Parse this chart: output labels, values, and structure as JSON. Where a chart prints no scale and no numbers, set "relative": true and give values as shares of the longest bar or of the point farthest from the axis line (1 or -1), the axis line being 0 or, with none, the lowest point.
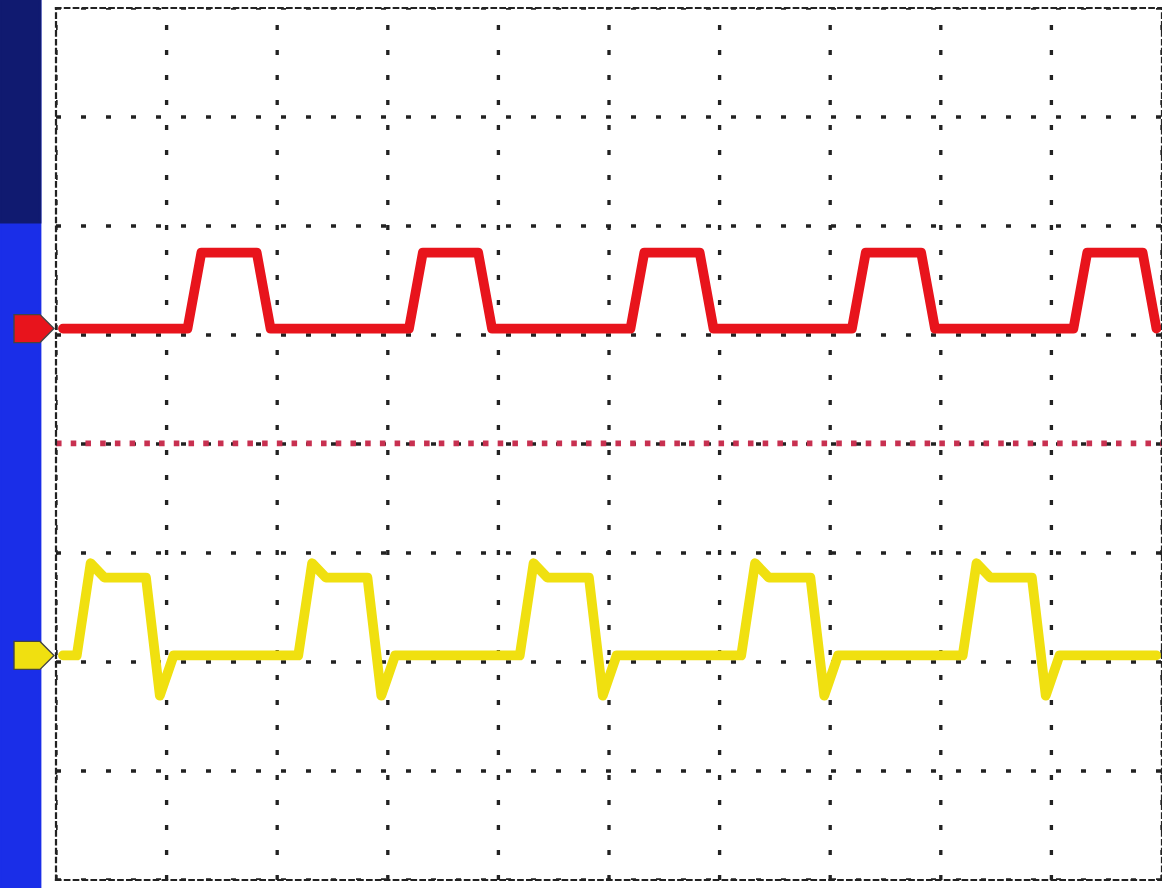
{
  "chart_data": {
    "type": "line",
    "relative": true,
    "grid": true,
    "marker": "none",
    "line_style": "solid",
    "categories": [
      null,
      null,
      null,
      null,
      null,
      null,
      null,
      null,
      null,
      null,
      null,
      null,
      null,
      null,
      null,
      null,
      null,
      null,
      null,
      null,
      null,
      null,
      null,
      null,
      null,
      null,
      null,
      null,
      null,
      null,
      null,
      null,
      null,
      null,
      null,
      null,
      null,
      null,
      null,
      null,
      null,
      null,
      null,
      null,
      null,
      null,
      null,
      null,
      null,
      null,
      null,
      null,
      null,
      null,
      null,
      null,
      null,
      null,
      null,
      null,
      null,
      null,
      null,
      null,
      null,
      null,
      null,
      null,
      null,
      null,
      null,
      null,
      null,
      null,
      null,
      null,
      null,
      null,
      null,
      null
    ],
    "series": [
      {
        "color": "#e8141c",
        "values": [
          0.879,
          0.879,
          0.879,
          0.879,
          0.879,
          0.879,
          0.879,
          0.879,
          0.879,
          0.879,
          1,
          1,
          1,
          1,
          1,
          0.879,
          0.879,
          0.879,
          0.879,
          0.879,
          0.879,
          0.879,
          0.879,
          0.879,
          0.879,
          0.879,
          1,
          1,
          1,
          1,
          1,
          0.879,
          0.879,
          0.879,
          0.879,
          0.879,
          0.879,
          0.879,
          0.879,
          0.879,
          0.879,
          0.879,
          1,
          1,
          1,
          1,
          1,
          0.879,
          0.879,
          0.879,
          0.879,
          0.879,
          0.879,
          0.879,
          0.879,
          0.879,
          0.879,
          0.879,
          1,
          1,
          1,
          1,
          1,
          0.879,
          0.879,
          0.879,
          0.879,
          0.879,
          0.879,
          0.879,
          0.879,
          0.879,
          0.879,
          0.879,
          1,
          1,
          1,
          1,
          1,
          0.879
        ]
      },
      {
        "color": "#f0e010",
        "values": [
          0.358,
          0.358,
          0.505,
          0.482,
          0.482,
          0.482,
          0.482,
          0.294,
          0.358,
          0.358,
          0.358,
          0.358,
          0.358,
          0.358,
          0.358,
          0.358,
          0.358,
          0.358,
          0.505,
          0.482,
          0.482,
          0.482,
          0.482,
          0.294,
          0.358,
          0.358,
          0.358,
          0.358,
          0.358,
          0.358,
          0.358,
          0.358,
          0.358,
          0.358,
          0.505,
          0.482,
          0.482,
          0.482,
          0.482,
          0.294,
          0.358,
          0.358,
          0.358,
          0.358,
          0.358,
          0.358,
          0.358,
          0.358,
          0.358,
          0.358,
          0.505,
          0.482,
          0.482,
          0.482,
          0.482,
          0.294,
          0.358,
          0.358,
          0.358,
          0.358,
          0.358,
          0.358,
          0.358,
          0.358,
          0.358,
          0.358,
          0.505,
          0.482,
          0.482,
          0.482,
          0.482,
          0.294,
          0.358,
          0.358,
          0.358,
          0.358,
          0.358,
          0.358,
          0.358,
          0.358
        ]
      }
    ],
    "ref_lines": [
      {
        "axis": "y",
        "value": 0.696,
        "label": null,
        "color": "#c83050",
        "line_style": "dotted"
      }
    ]
  }
}
